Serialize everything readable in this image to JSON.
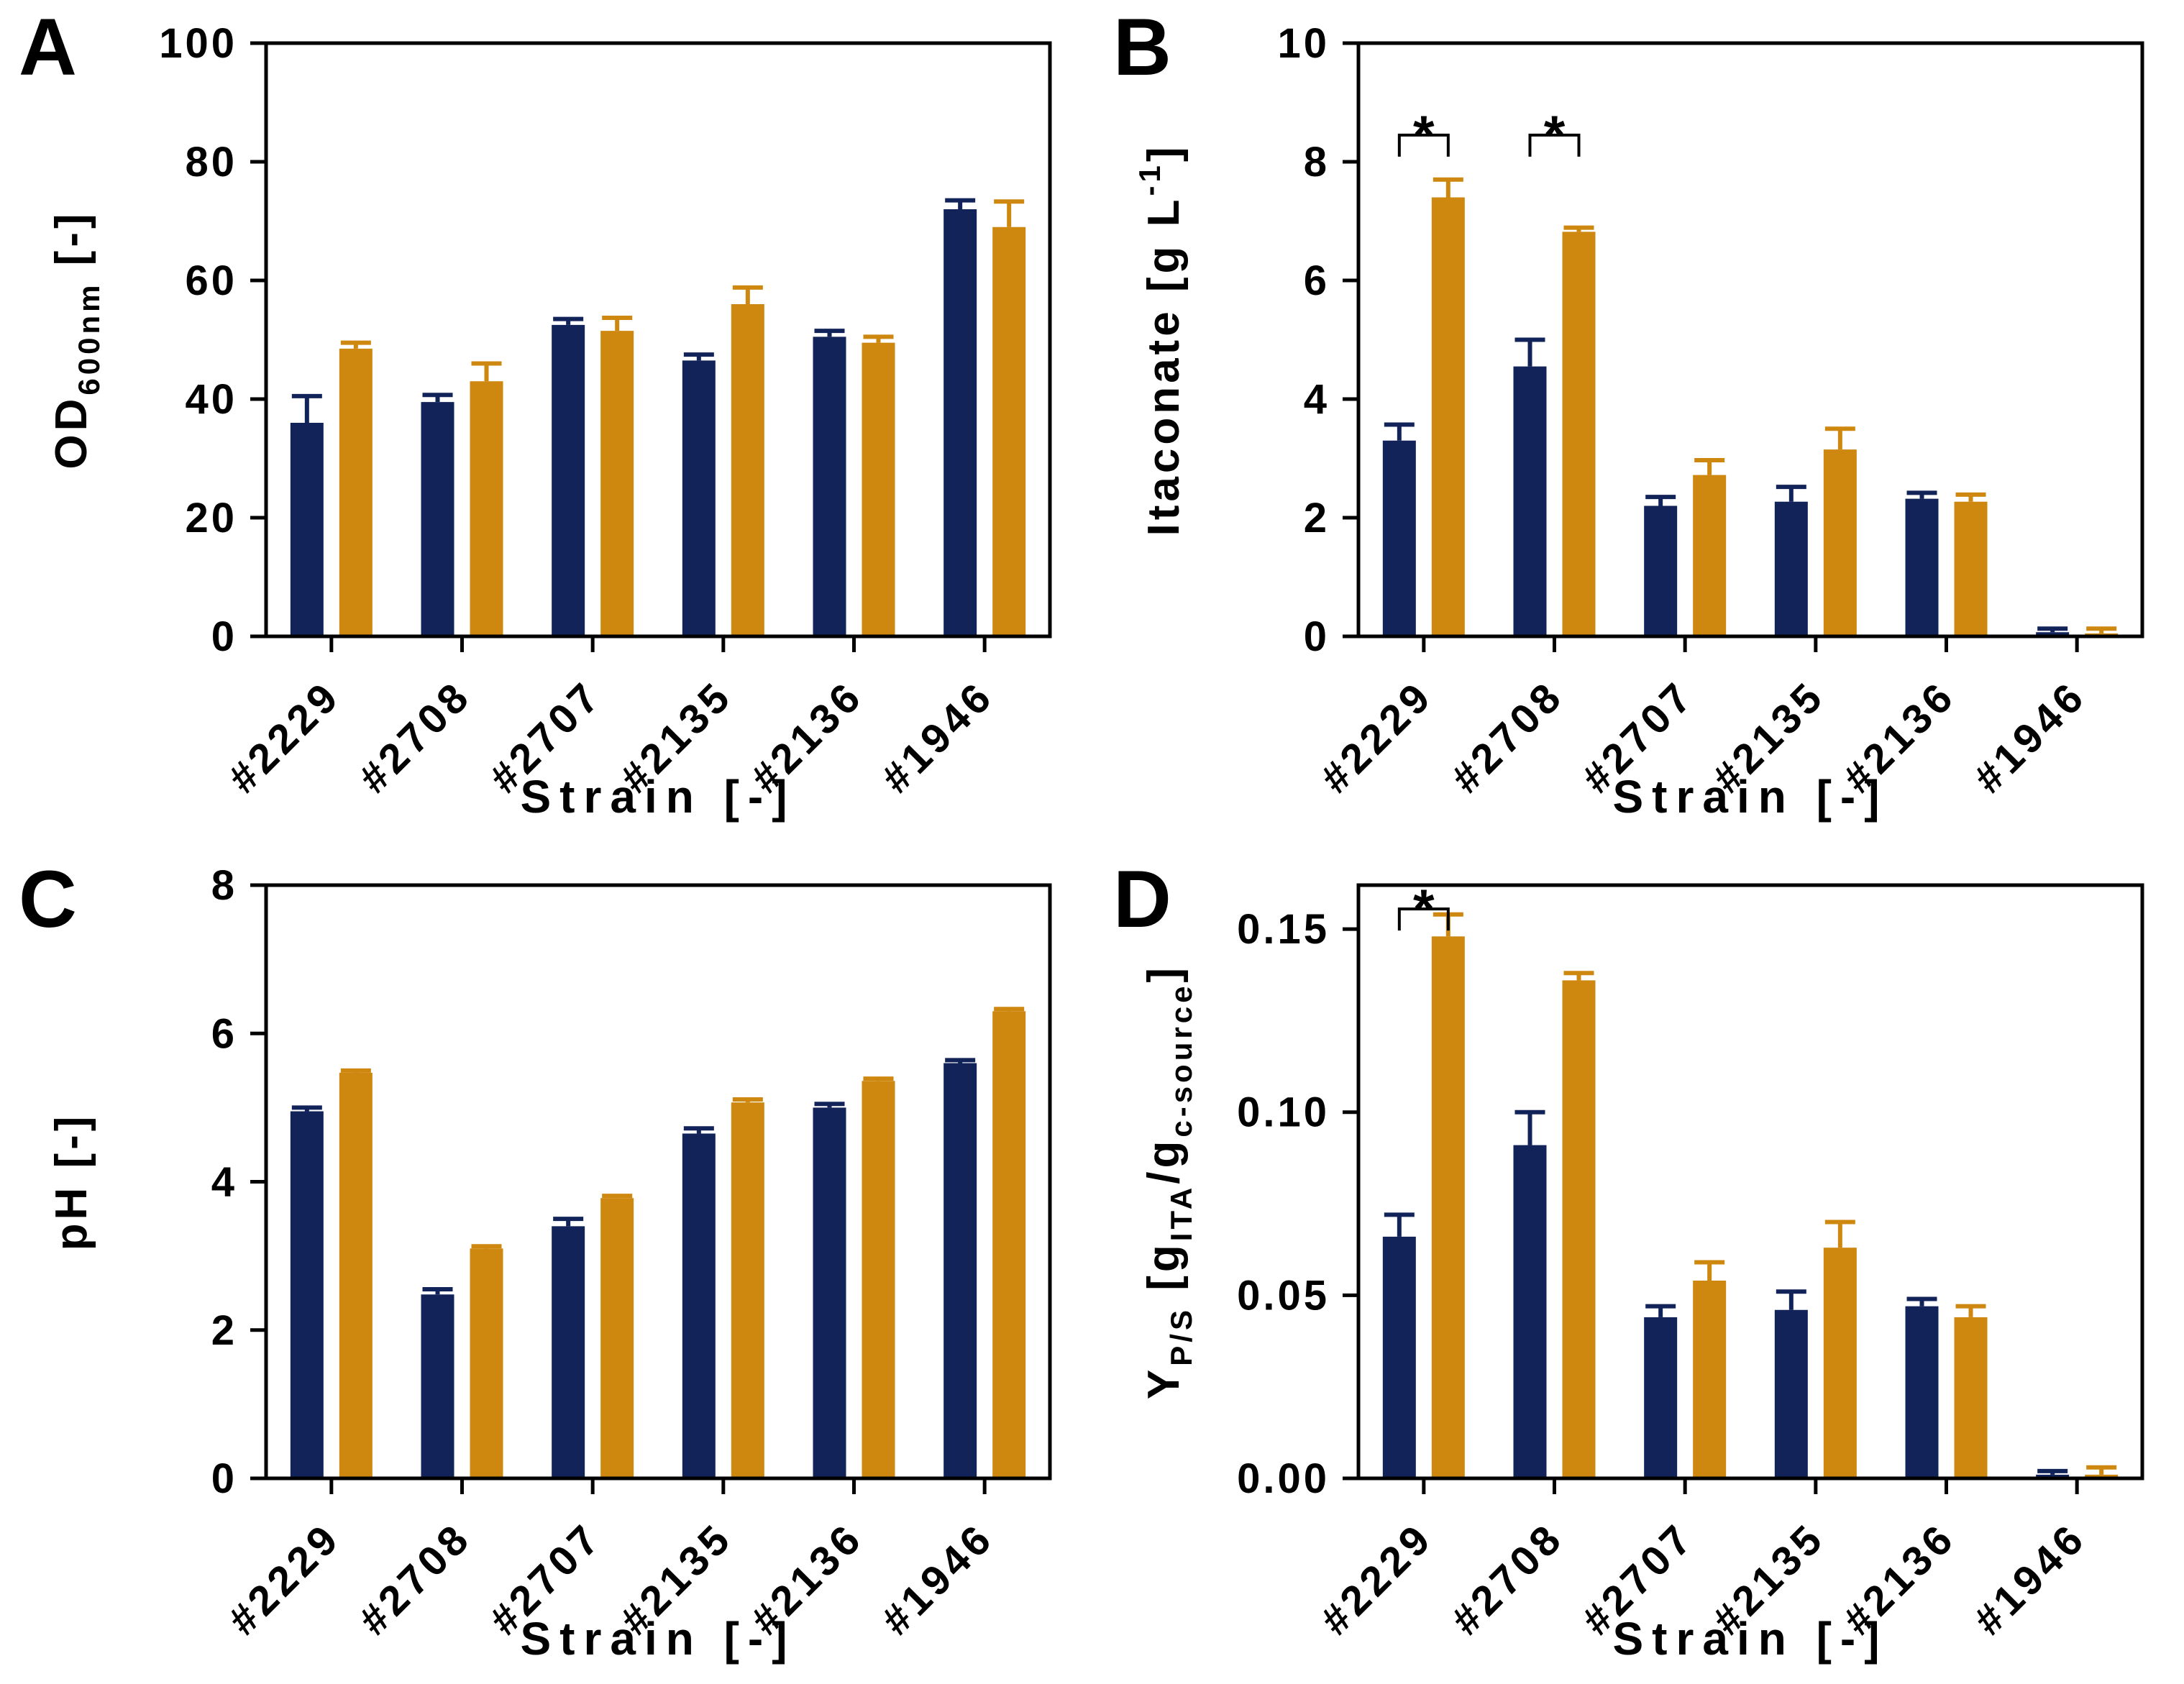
{
  "figure": {
    "background": "#FFFFFF",
    "description": "Four-panel bar figure comparing six strains, two bars (navy, orange) per strain with upward error bars"
  },
  "colors": {
    "navy": "#12235A",
    "orange": "#CE870F",
    "axis": "#000000",
    "text": "#000000"
  },
  "chart_data": [
    {
      "type": "bar",
      "panel_label": "A",
      "title": "",
      "xlabel": "Strain [-]",
      "ylabel": "OD600nm [-]",
      "ylabel_parts": [
        {
          "t": "OD"
        },
        {
          "t": "600nm",
          "style": "sub"
        },
        {
          "t": " [-]"
        }
      ],
      "ylim": [
        0,
        100
      ],
      "yticks": [
        {
          "v": 0,
          "label": "0"
        },
        {
          "v": 20,
          "label": "20"
        },
        {
          "v": 40,
          "label": "40"
        },
        {
          "v": 60,
          "label": "60"
        },
        {
          "v": 80,
          "label": "80"
        },
        {
          "v": 100,
          "label": "100"
        }
      ],
      "grid": false,
      "legend": "none",
      "categories": [
        "#2229",
        "#2708",
        "#2707",
        "#2135",
        "#2136",
        "#1946"
      ],
      "series": [
        {
          "name": "series_navy",
          "color_key": "navy",
          "values": [
            36,
            39.5,
            52.5,
            46.5,
            50.5,
            72
          ],
          "errors": [
            4.5,
            1.2,
            1.0,
            1.0,
            1.0,
            1.5
          ]
        },
        {
          "name": "series_orange",
          "color_key": "orange",
          "values": [
            48.5,
            43,
            51.5,
            56,
            49.5,
            69
          ],
          "errors": [
            1.0,
            3.0,
            2.2,
            2.8,
            1.0,
            4.3
          ]
        }
      ],
      "significance": []
    },
    {
      "type": "bar",
      "panel_label": "B",
      "title": "",
      "xlabel": "Strain [-]",
      "ylabel": "Itaconate [g L-1]",
      "ylabel_parts": [
        {
          "t": "Itaconate [g L"
        },
        {
          "t": "-1",
          "style": "sup"
        },
        {
          "t": "]"
        }
      ],
      "ylim": [
        0,
        10
      ],
      "yticks": [
        {
          "v": 0,
          "label": "0"
        },
        {
          "v": 2,
          "label": "2"
        },
        {
          "v": 4,
          "label": "4"
        },
        {
          "v": 6,
          "label": "6"
        },
        {
          "v": 8,
          "label": "8"
        },
        {
          "v": 10,
          "label": "10"
        }
      ],
      "grid": false,
      "legend": "none",
      "categories": [
        "#2229",
        "#2708",
        "#2707",
        "#2135",
        "#2136",
        "#1946"
      ],
      "series": [
        {
          "name": "series_navy",
          "color_key": "navy",
          "values": [
            3.3,
            4.55,
            2.2,
            2.27,
            2.32,
            0.07
          ],
          "errors": [
            0.27,
            0.45,
            0.15,
            0.25,
            0.1,
            0.06
          ]
        },
        {
          "name": "series_orange",
          "color_key": "orange",
          "values": [
            7.4,
            6.82,
            2.72,
            3.15,
            2.27,
            0.05
          ],
          "errors": [
            0.3,
            0.07,
            0.25,
            0.35,
            0.12,
            0.08
          ]
        }
      ],
      "significance": [
        {
          "group_index": 0,
          "label": "*",
          "y": 8.45
        },
        {
          "group_index": 1,
          "label": "*",
          "y": 8.45
        }
      ]
    },
    {
      "type": "bar",
      "panel_label": "C",
      "title": "",
      "xlabel": "Strain [-]",
      "ylabel": "pH [-]",
      "ylabel_parts": [
        {
          "t": "pH [-]"
        }
      ],
      "ylim": [
        0,
        8
      ],
      "yticks": [
        {
          "v": 0,
          "label": "0"
        },
        {
          "v": 2,
          "label": "2"
        },
        {
          "v": 4,
          "label": "4"
        },
        {
          "v": 6,
          "label": "6"
        },
        {
          "v": 8,
          "label": "8"
        }
      ],
      "grid": false,
      "legend": "none",
      "categories": [
        "#2229",
        "#2708",
        "#2707",
        "#2135",
        "#2136",
        "#1946"
      ],
      "series": [
        {
          "name": "series_navy",
          "color_key": "navy",
          "values": [
            4.95,
            2.48,
            3.4,
            4.65,
            5.0,
            5.6
          ],
          "errors": [
            0.05,
            0.07,
            0.1,
            0.07,
            0.05,
            0.04
          ]
        },
        {
          "name": "series_orange",
          "color_key": "orange",
          "values": [
            5.47,
            3.1,
            3.78,
            5.07,
            5.36,
            6.3
          ],
          "errors": [
            0.03,
            0.03,
            0.03,
            0.04,
            0.03,
            0.03
          ]
        }
      ],
      "significance": []
    },
    {
      "type": "bar",
      "panel_label": "D",
      "title": "",
      "xlabel": "Strain [-]",
      "ylabel": "YP/S [gITA/gc-source]",
      "ylabel_parts": [
        {
          "t": "Y"
        },
        {
          "t": "P/S",
          "style": "sub"
        },
        {
          "t": " [g"
        },
        {
          "t": "ITA",
          "style": "sub"
        },
        {
          "t": "/g"
        },
        {
          "t": "c-source",
          "style": "sub"
        },
        {
          "t": "]"
        }
      ],
      "ylim": [
        0,
        0.162
      ],
      "yticks": [
        {
          "v": 0,
          "label": "0.00"
        },
        {
          "v": 0.05,
          "label": "0.05"
        },
        {
          "v": 0.1,
          "label": "0.10"
        },
        {
          "v": 0.15,
          "label": "0.15"
        }
      ],
      "grid": false,
      "legend": "none",
      "categories": [
        "#2229",
        "#2708",
        "#2707",
        "#2135",
        "#2136",
        "#1946"
      ],
      "series": [
        {
          "name": "series_navy",
          "color_key": "navy",
          "values": [
            0.066,
            0.091,
            0.044,
            0.046,
            0.047,
            0.001
          ],
          "errors": [
            0.006,
            0.009,
            0.003,
            0.005,
            0.002,
            0.001
          ]
        },
        {
          "name": "series_orange",
          "color_key": "orange",
          "values": [
            0.148,
            0.136,
            0.054,
            0.063,
            0.044,
            0.001
          ],
          "errors": [
            0.006,
            0.002,
            0.005,
            0.007,
            0.003,
            0.002
          ]
        }
      ],
      "significance": [
        {
          "group_index": 0,
          "label": "*",
          "y": 0.1555
        }
      ]
    }
  ]
}
